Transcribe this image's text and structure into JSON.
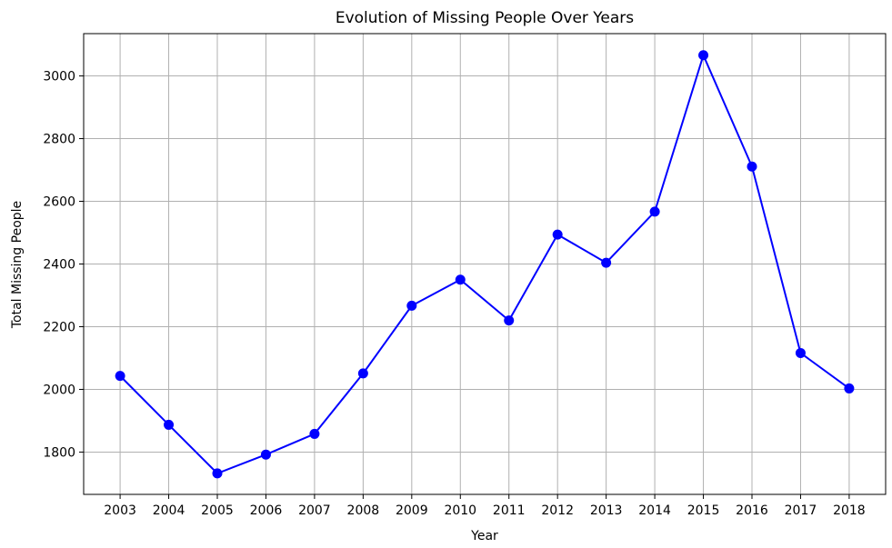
{
  "chart_data": {
    "type": "line",
    "title": "Evolution of Missing People Over Years",
    "xlabel": "Year",
    "ylabel": "Total Missing People",
    "x": [
      "2003",
      "2004",
      "2005",
      "2006",
      "2007",
      "2008",
      "2009",
      "2010",
      "2011",
      "2012",
      "2013",
      "2014",
      "2015",
      "2016",
      "2017",
      "2018"
    ],
    "series": [
      {
        "values": [
          2043,
          1887,
          1732,
          1792,
          1858,
          2051,
          2267,
          2350,
          2220,
          2494,
          2404,
          2567,
          3066,
          2711,
          2116,
          2003
        ],
        "color": "#0000ff",
        "marker": "circle"
      }
    ],
    "xlim": [
      2002.25,
      2018.75
    ],
    "ylim": [
      1665,
      3135
    ],
    "yticks": [
      1800,
      2000,
      2200,
      2400,
      2600,
      2800,
      3000
    ],
    "grid": true
  }
}
